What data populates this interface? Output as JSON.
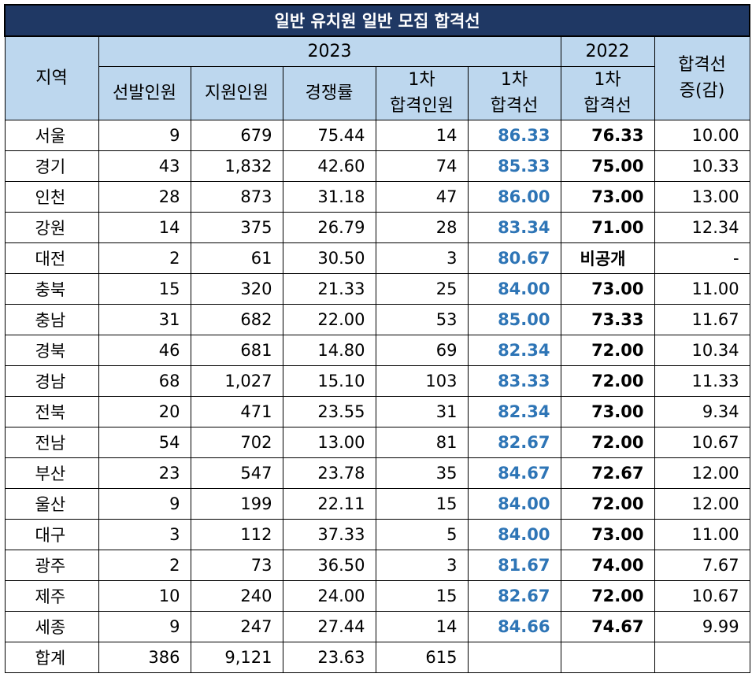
{
  "title": "일반 유치원 일반 모집 합격선",
  "headers": {
    "region": "지역",
    "year2023": "2023",
    "year2022": "2022",
    "change_line1": "합격선",
    "change_line2": "증(감)",
    "selected": "선발인원",
    "applicants": "지원인원",
    "competition": "경쟁률",
    "pass_count_line1": "1차",
    "pass_count_line2": "합격인원",
    "cutoff_line1": "1차",
    "cutoff_line2": "합격선",
    "cutoff22_line1": "1차",
    "cutoff22_line2": "합격선"
  },
  "rows": [
    {
      "region": "서울",
      "selected": "9",
      "applicants": "679",
      "competition": "75.44",
      "passers": "14",
      "cutoff2023": "86.33",
      "cutoff2022": "76.33",
      "change": "10.00"
    },
    {
      "region": "경기",
      "selected": "43",
      "applicants": "1,832",
      "competition": "42.60",
      "passers": "74",
      "cutoff2023": "85.33",
      "cutoff2022": "75.00",
      "change": "10.33"
    },
    {
      "region": "인천",
      "selected": "28",
      "applicants": "873",
      "competition": "31.18",
      "passers": "47",
      "cutoff2023": "86.00",
      "cutoff2022": "73.00",
      "change": "13.00"
    },
    {
      "region": "강원",
      "selected": "14",
      "applicants": "375",
      "competition": "26.79",
      "passers": "28",
      "cutoff2023": "83.34",
      "cutoff2022": "71.00",
      "change": "12.34"
    },
    {
      "region": "대전",
      "selected": "2",
      "applicants": "61",
      "competition": "30.50",
      "passers": "3",
      "cutoff2023": "80.67",
      "cutoff2022": "비공개",
      "change": "-"
    },
    {
      "region": "충북",
      "selected": "15",
      "applicants": "320",
      "competition": "21.33",
      "passers": "25",
      "cutoff2023": "84.00",
      "cutoff2022": "73.00",
      "change": "11.00"
    },
    {
      "region": "충남",
      "selected": "31",
      "applicants": "682",
      "competition": "22.00",
      "passers": "53",
      "cutoff2023": "85.00",
      "cutoff2022": "73.33",
      "change": "11.67"
    },
    {
      "region": "경북",
      "selected": "46",
      "applicants": "681",
      "competition": "14.80",
      "passers": "69",
      "cutoff2023": "82.34",
      "cutoff2022": "72.00",
      "change": "10.34"
    },
    {
      "region": "경남",
      "selected": "68",
      "applicants": "1,027",
      "competition": "15.10",
      "passers": "103",
      "cutoff2023": "83.33",
      "cutoff2022": "72.00",
      "change": "11.33"
    },
    {
      "region": "전북",
      "selected": "20",
      "applicants": "471",
      "competition": "23.55",
      "passers": "31",
      "cutoff2023": "82.34",
      "cutoff2022": "73.00",
      "change": "9.34"
    },
    {
      "region": "전남",
      "selected": "54",
      "applicants": "702",
      "competition": "13.00",
      "passers": "81",
      "cutoff2023": "82.67",
      "cutoff2022": "72.00",
      "change": "10.67"
    },
    {
      "region": "부산",
      "selected": "23",
      "applicants": "547",
      "competition": "23.78",
      "passers": "35",
      "cutoff2023": "84.67",
      "cutoff2022": "72.67",
      "change": "12.00"
    },
    {
      "region": "울산",
      "selected": "9",
      "applicants": "199",
      "competition": "22.11",
      "passers": "15",
      "cutoff2023": "84.00",
      "cutoff2022": "72.00",
      "change": "12.00"
    },
    {
      "region": "대구",
      "selected": "3",
      "applicants": "112",
      "competition": "37.33",
      "passers": "5",
      "cutoff2023": "84.00",
      "cutoff2022": "73.00",
      "change": "11.00"
    },
    {
      "region": "광주",
      "selected": "2",
      "applicants": "73",
      "competition": "36.50",
      "passers": "3",
      "cutoff2023": "81.67",
      "cutoff2022": "74.00",
      "change": "7.67"
    },
    {
      "region": "제주",
      "selected": "10",
      "applicants": "240",
      "competition": "24.00",
      "passers": "15",
      "cutoff2023": "82.67",
      "cutoff2022": "72.00",
      "change": "10.67"
    },
    {
      "region": "세종",
      "selected": "9",
      "applicants": "247",
      "competition": "27.44",
      "passers": "14",
      "cutoff2023": "84.66",
      "cutoff2022": "74.67",
      "change": "9.99"
    },
    {
      "region": "합계",
      "selected": "386",
      "applicants": "9,121",
      "competition": "23.63",
      "passers": "615",
      "cutoff2023": "",
      "cutoff2022": "",
      "change": ""
    }
  ],
  "colors": {
    "title_bg": "#1f3864",
    "header_bg": "#bdd7ee",
    "cutoff_text": "#2e75b6"
  }
}
